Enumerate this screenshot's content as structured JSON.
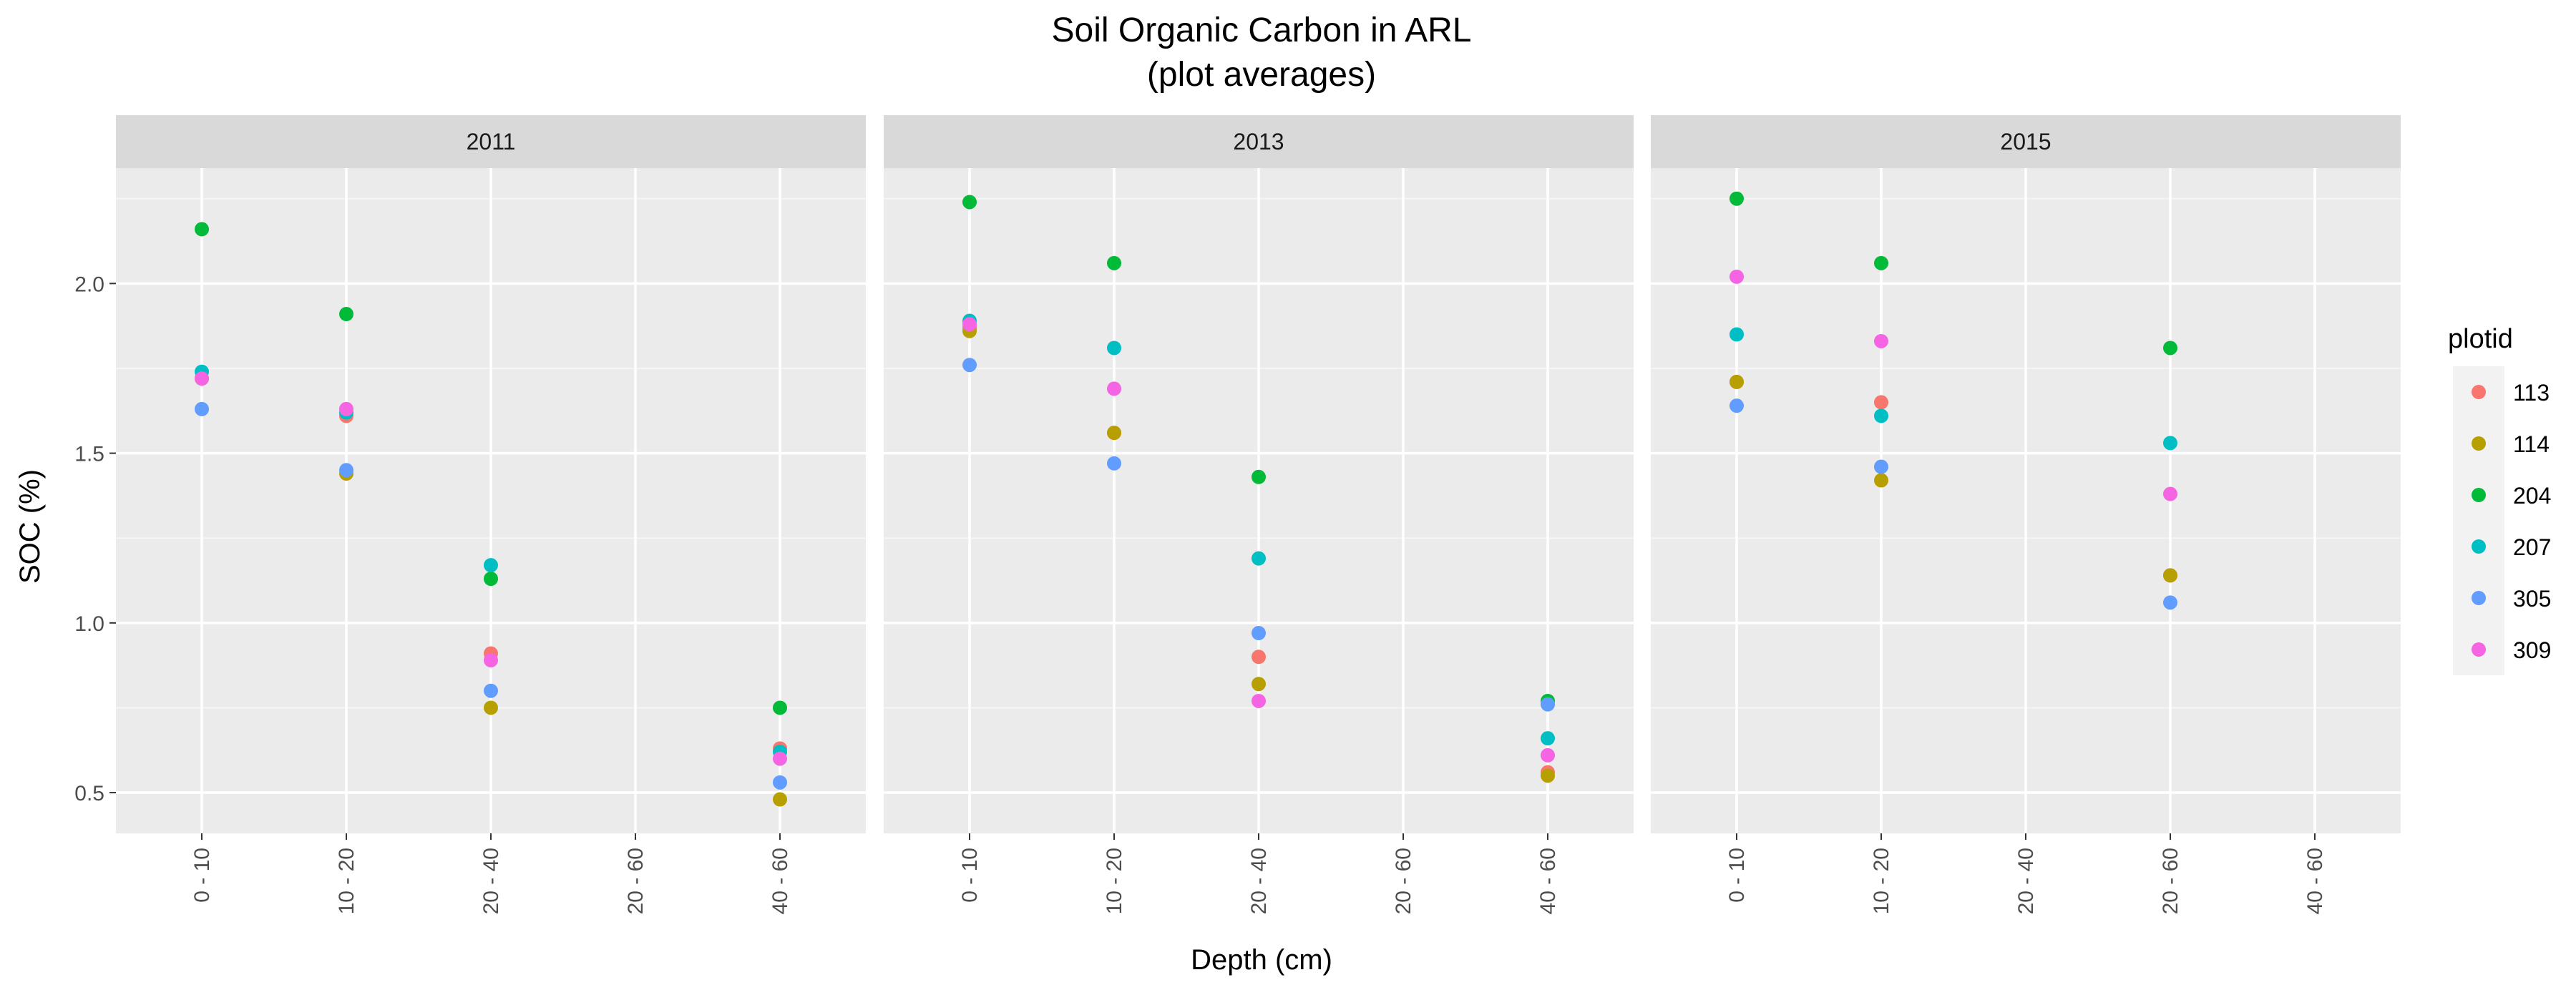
{
  "chart_data": {
    "type": "scatter",
    "title": "Soil Organic Carbon in ARL",
    "subtitle": "(plot averages)",
    "xlabel": "Depth (cm)",
    "ylabel": "SOC (%)",
    "x_categories": [
      "0 - 10",
      "10 - 20",
      "20 - 40",
      "20 - 60",
      "40 - 60"
    ],
    "y_ticks": [
      "0.5",
      "1.0",
      "1.5",
      "2.0"
    ],
    "ylim": [
      0.38,
      2.34
    ],
    "grid": true,
    "legend": {
      "title": "plotid",
      "position": "right",
      "entries": [
        "113",
        "114",
        "204",
        "207",
        "305",
        "309"
      ]
    },
    "colors": {
      "113": "#F8766D",
      "114": "#B79F00",
      "204": "#00BA38",
      "207": "#00BFC4",
      "305": "#619CFF",
      "309": "#F564E3"
    },
    "panels": [
      {
        "label": "2011",
        "series": [
          {
            "name": "113",
            "points": [
              {
                "x": "0 - 10",
                "y": 1.72
              },
              {
                "x": "10 - 20",
                "y": 1.61
              },
              {
                "x": "20 - 40",
                "y": 0.91
              },
              {
                "x": "40 - 60",
                "y": 0.63
              }
            ]
          },
          {
            "name": "114",
            "points": [
              {
                "x": "0 - 10",
                "y": 1.72
              },
              {
                "x": "10 - 20",
                "y": 1.44
              },
              {
                "x": "20 - 40",
                "y": 0.75
              },
              {
                "x": "40 - 60",
                "y": 0.48
              }
            ]
          },
          {
            "name": "204",
            "points": [
              {
                "x": "0 - 10",
                "y": 2.16
              },
              {
                "x": "10 - 20",
                "y": 1.91
              },
              {
                "x": "20 - 40",
                "y": 1.13
              },
              {
                "x": "40 - 60",
                "y": 0.75
              }
            ]
          },
          {
            "name": "207",
            "points": [
              {
                "x": "0 - 10",
                "y": 1.74
              },
              {
                "x": "10 - 20",
                "y": 1.62
              },
              {
                "x": "20 - 40",
                "y": 1.17
              },
              {
                "x": "40 - 60",
                "y": 0.62
              }
            ]
          },
          {
            "name": "305",
            "points": [
              {
                "x": "0 - 10",
                "y": 1.63
              },
              {
                "x": "10 - 20",
                "y": 1.45
              },
              {
                "x": "20 - 40",
                "y": 0.8
              },
              {
                "x": "40 - 60",
                "y": 0.53
              }
            ]
          },
          {
            "name": "309",
            "points": [
              {
                "x": "0 - 10",
                "y": 1.72
              },
              {
                "x": "10 - 20",
                "y": 1.63
              },
              {
                "x": "20 - 40",
                "y": 0.89
              },
              {
                "x": "40 - 60",
                "y": 0.6
              }
            ]
          }
        ]
      },
      {
        "label": "2013",
        "series": [
          {
            "name": "113",
            "points": [
              {
                "x": "0 - 10",
                "y": 1.87
              },
              {
                "x": "10 - 20",
                "y": 1.56
              },
              {
                "x": "20 - 40",
                "y": 0.9
              },
              {
                "x": "40 - 60",
                "y": 0.56
              }
            ]
          },
          {
            "name": "114",
            "points": [
              {
                "x": "0 - 10",
                "y": 1.86
              },
              {
                "x": "10 - 20",
                "y": 1.56
              },
              {
                "x": "20 - 40",
                "y": 0.82
              },
              {
                "x": "40 - 60",
                "y": 0.55
              }
            ]
          },
          {
            "name": "204",
            "points": [
              {
                "x": "0 - 10",
                "y": 2.24
              },
              {
                "x": "10 - 20",
                "y": 2.06
              },
              {
                "x": "20 - 40",
                "y": 1.43
              },
              {
                "x": "40 - 60",
                "y": 0.77
              }
            ]
          },
          {
            "name": "207",
            "points": [
              {
                "x": "0 - 10",
                "y": 1.89
              },
              {
                "x": "10 - 20",
                "y": 1.81
              },
              {
                "x": "20 - 40",
                "y": 1.19
              },
              {
                "x": "40 - 60",
                "y": 0.66
              }
            ]
          },
          {
            "name": "305",
            "points": [
              {
                "x": "0 - 10",
                "y": 1.76
              },
              {
                "x": "10 - 20",
                "y": 1.47
              },
              {
                "x": "20 - 40",
                "y": 0.97
              },
              {
                "x": "40 - 60",
                "y": 0.76
              }
            ]
          },
          {
            "name": "309",
            "points": [
              {
                "x": "0 - 10",
                "y": 1.88
              },
              {
                "x": "10 - 20",
                "y": 1.69
              },
              {
                "x": "20 - 40",
                "y": 0.77
              },
              {
                "x": "40 - 60",
                "y": 0.61
              }
            ]
          }
        ]
      },
      {
        "label": "2015",
        "series": [
          {
            "name": "113",
            "points": [
              {
                "x": "0 - 10",
                "y": 1.71
              },
              {
                "x": "10 - 20",
                "y": 1.65
              },
              {
                "x": "20 - 60",
                "y": 1.14
              }
            ]
          },
          {
            "name": "114",
            "points": [
              {
                "x": "0 - 10",
                "y": 1.71
              },
              {
                "x": "10 - 20",
                "y": 1.42
              },
              {
                "x": "20 - 60",
                "y": 1.14
              }
            ]
          },
          {
            "name": "204",
            "points": [
              {
                "x": "0 - 10",
                "y": 2.25
              },
              {
                "x": "10 - 20",
                "y": 2.06
              },
              {
                "x": "20 - 60",
                "y": 1.81
              }
            ]
          },
          {
            "name": "207",
            "points": [
              {
                "x": "0 - 10",
                "y": 1.85
              },
              {
                "x": "10 - 20",
                "y": 1.61
              },
              {
                "x": "20 - 60",
                "y": 1.53
              }
            ]
          },
          {
            "name": "305",
            "points": [
              {
                "x": "0 - 10",
                "y": 1.64
              },
              {
                "x": "10 - 20",
                "y": 1.46
              },
              {
                "x": "20 - 60",
                "y": 1.06
              }
            ]
          },
          {
            "name": "309",
            "points": [
              {
                "x": "0 - 10",
                "y": 2.02
              },
              {
                "x": "10 - 20",
                "y": 1.83
              },
              {
                "x": "20 - 60",
                "y": 1.38
              }
            ]
          }
        ]
      }
    ]
  }
}
